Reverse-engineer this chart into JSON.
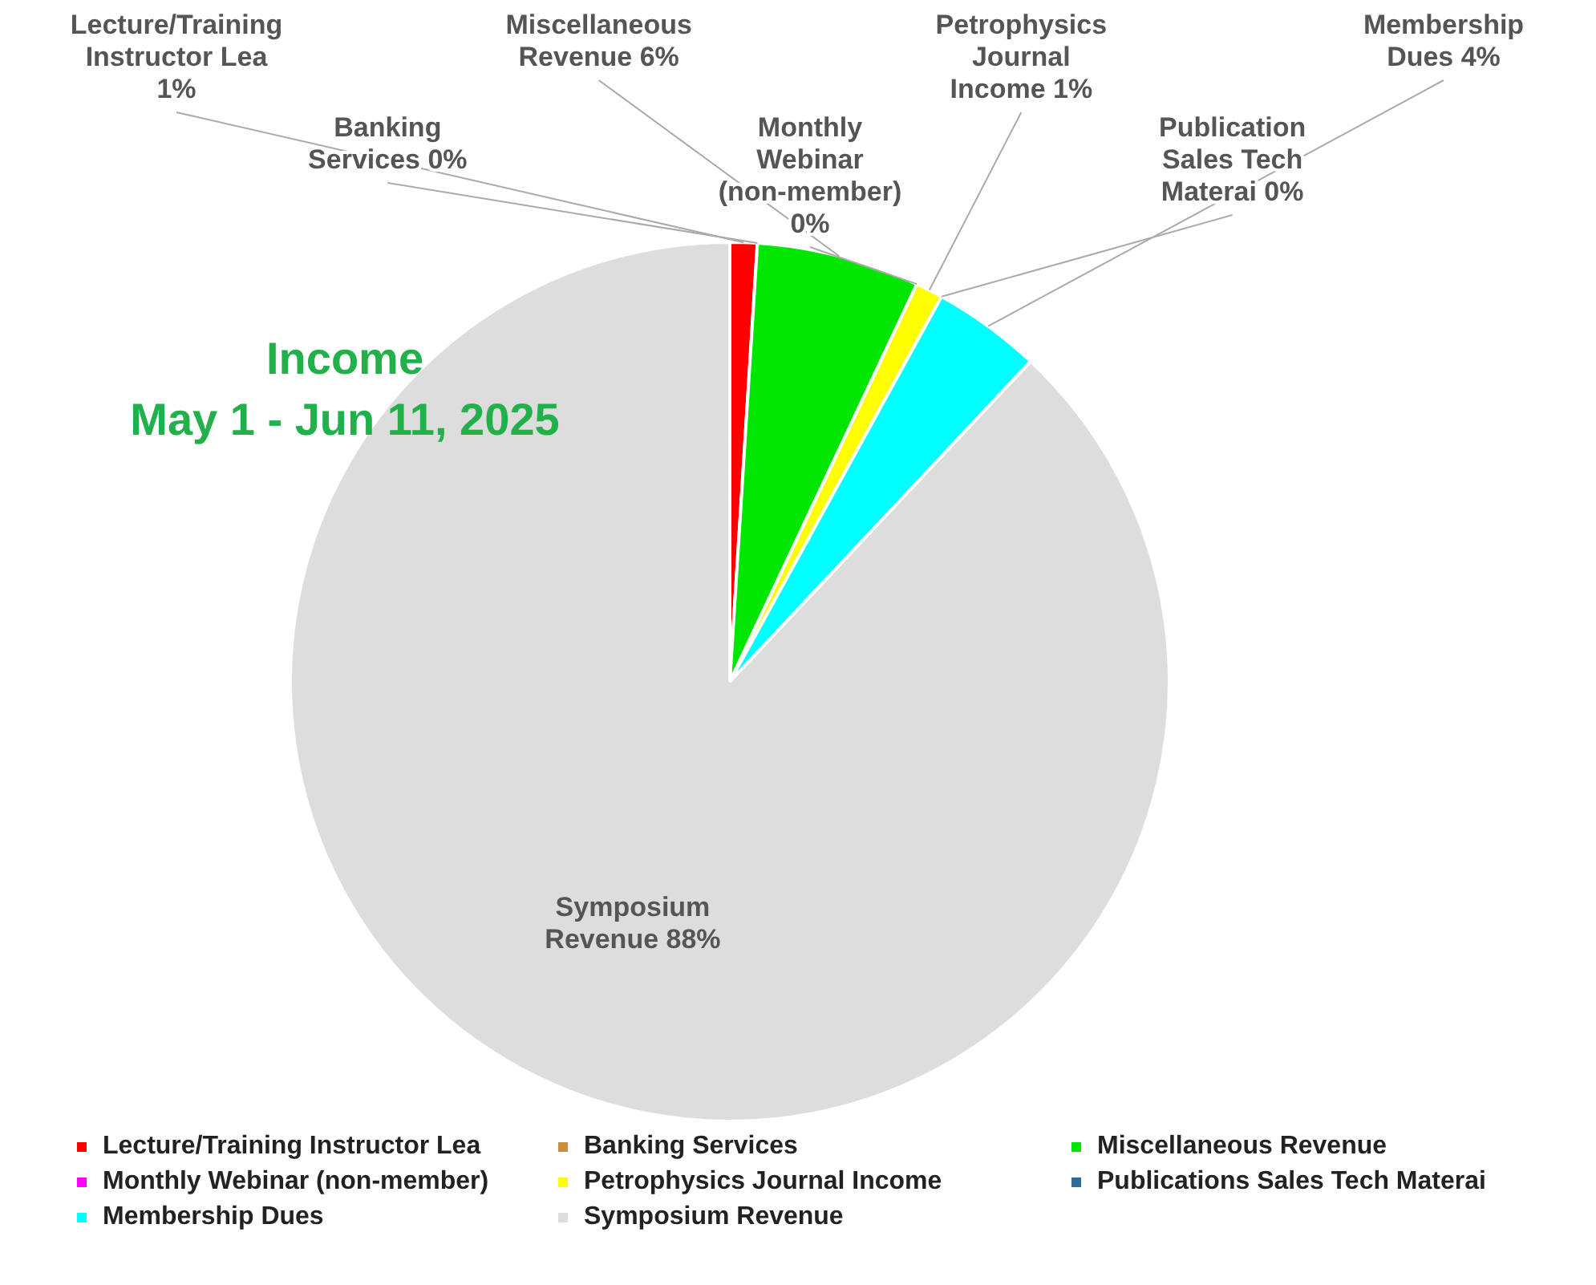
{
  "chart_data": {
    "type": "pie",
    "title": "Income\nMay 1 - Jun 11, 2025",
    "categories": [
      "Lecture/Training Instructor Lea",
      "Banking Services",
      "Miscellaneous Revenue",
      "Monthly Webinar (non-member)",
      "Petrophysics Journal Income",
      "Publications Sales Tech Materai",
      "Membership Dues",
      "Symposium Revenue"
    ],
    "values": [
      1,
      0,
      6,
      0,
      1,
      0,
      4,
      88
    ],
    "colors": [
      "#ff0000",
      "#c8903a",
      "#00e600",
      "#ff00ff",
      "#ffff00",
      "#2f6b9a",
      "#00ffff",
      "#dddddd"
    ],
    "value_labels": [
      "Lecture/Training Instructor Lea 1%",
      "Banking Services 0%",
      "Miscellaneous Revenue 6%",
      "Monthly Webinar (non-member) 0%",
      "Petrophysics Journal Income 1%",
      "Publication Sales Tech Materai 0%",
      "Membership Dues 4%",
      "Symposium Revenue 88%"
    ],
    "legend": "bottom"
  }
}
